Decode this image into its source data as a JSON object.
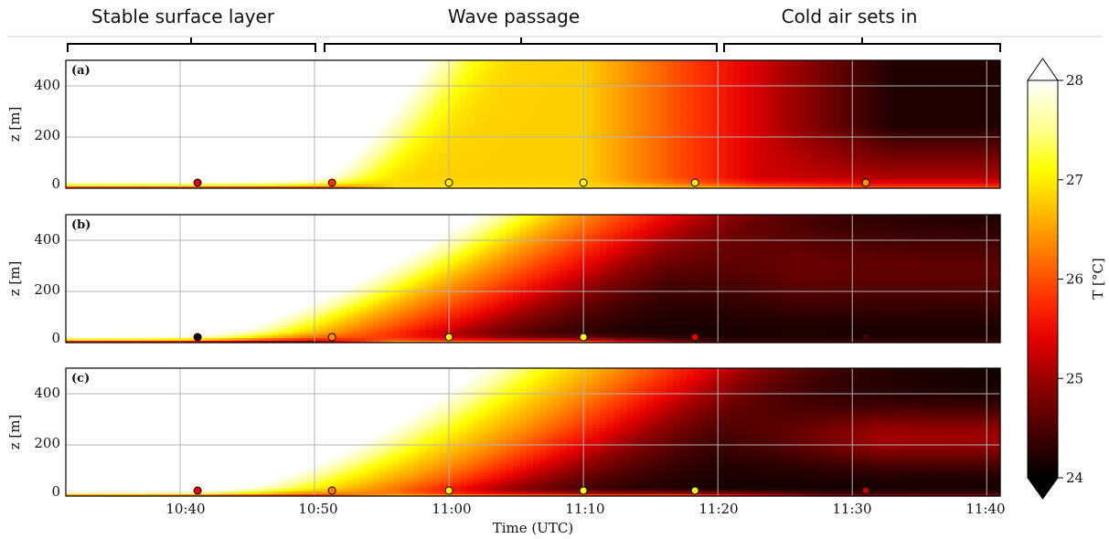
{
  "chart_data": {
    "type": "heatmap",
    "phases": [
      "Stable surface layer",
      "Wave passage",
      "Cold air sets in"
    ],
    "xlabel": "Time (UTC)",
    "x_ticks": [
      "10:40",
      "10:50",
      "11:00",
      "11:10",
      "11:20",
      "11:30",
      "11:40"
    ],
    "x_range_min": [
      -8.5,
      61
    ],
    "ylabel": "z [m]",
    "y_ticks": [
      0,
      200,
      400
    ],
    "ylim": [
      0,
      500
    ],
    "colorbar": {
      "label": "T [°C]",
      "ticks": [
        24,
        25,
        26,
        27,
        28
      ],
      "range": [
        24,
        28
      ],
      "extend": "both",
      "stops": [
        {
          "value": 24.0,
          "color": "#000000"
        },
        {
          "value": 24.4,
          "color": "#3d0000"
        },
        {
          "value": 25.0,
          "color": "#9a0000"
        },
        {
          "value": 25.4,
          "color": "#e60000"
        },
        {
          "value": 25.8,
          "color": "#ff3000"
        },
        {
          "value": 26.3,
          "color": "#ff8000"
        },
        {
          "value": 26.7,
          "color": "#ffc000"
        },
        {
          "value": 27.1,
          "color": "#ffff00"
        },
        {
          "value": 27.5,
          "color": "#ffff90"
        },
        {
          "value": 28.0,
          "color": "#ffffff"
        }
      ]
    },
    "panels": [
      {
        "label": "(a)",
        "surface_temperature": [
          {
            "time_min": 1.3,
            "T": 25.3
          },
          {
            "time_min": 11.3,
            "T": 25.8
          },
          {
            "time_min": 20,
            "T": 27.0
          },
          {
            "time_min": 30,
            "T": 27.1
          },
          {
            "time_min": 38.3,
            "T": 27.0
          },
          {
            "time_min": 51,
            "T": 26.4
          }
        ]
      },
      {
        "label": "(b)",
        "surface_temperature": [
          {
            "time_min": 1.3,
            "T": 24.2
          },
          {
            "time_min": 11.3,
            "T": 26.4
          },
          {
            "time_min": 20,
            "T": 27.0
          },
          {
            "time_min": 30,
            "T": 27.1
          },
          {
            "time_min": 38.3,
            "T": 25.4
          },
          {
            "time_min": 51,
            "T": 24.5
          }
        ]
      },
      {
        "label": "(c)",
        "surface_temperature": [
          {
            "time_min": 1.3,
            "T": 25.4
          },
          {
            "time_min": 11.3,
            "T": 26.3
          },
          {
            "time_min": 20,
            "T": 27.0
          },
          {
            "time_min": 30,
            "T": 27.1
          },
          {
            "time_min": 38.3,
            "T": 27.0
          },
          {
            "time_min": 51,
            "T": 25.2
          }
        ]
      }
    ],
    "grid": true
  }
}
